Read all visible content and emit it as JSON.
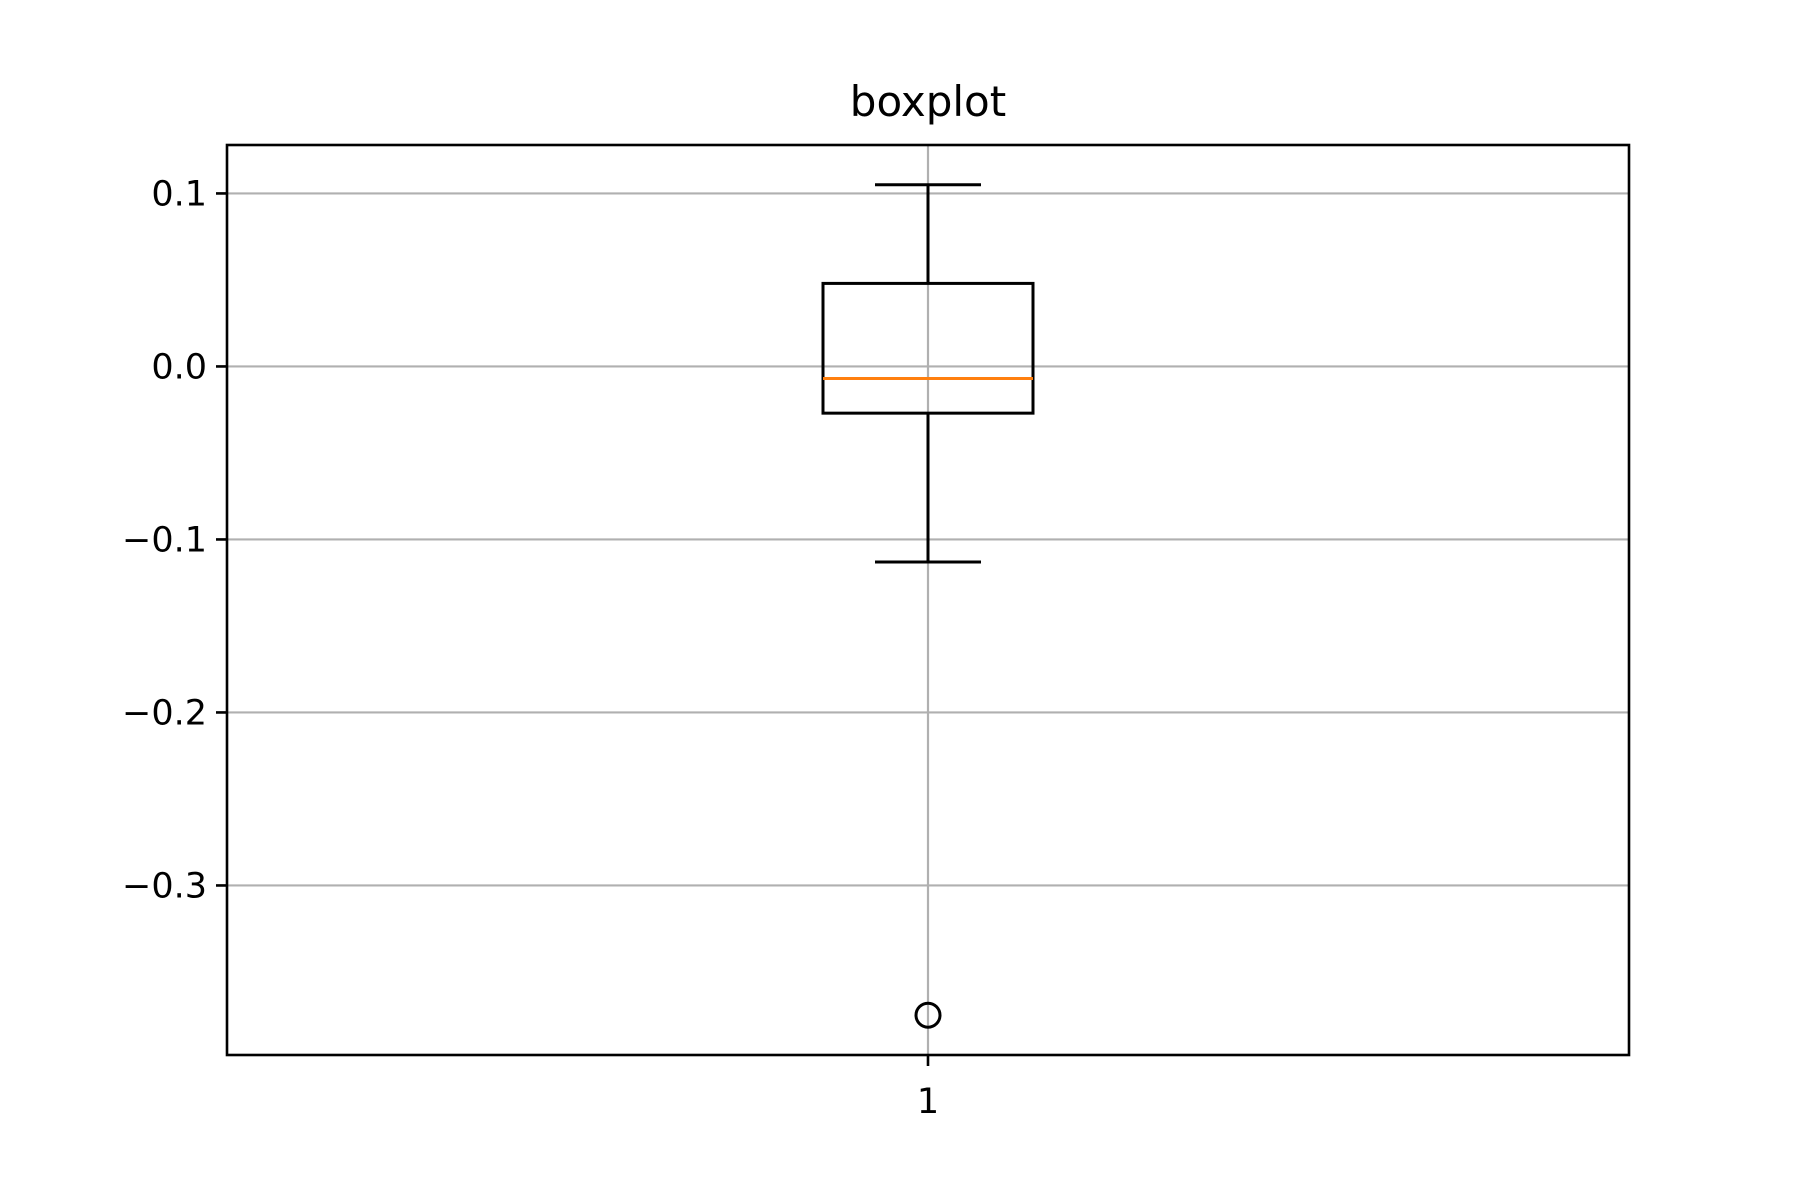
{
  "chart_data": {
    "type": "boxplot",
    "title": "boxplot",
    "xlabel": "",
    "ylabel": "",
    "categories": [
      "1"
    ],
    "boxes": [
      {
        "category": "1",
        "q1": -0.027,
        "median": -0.007,
        "q3": 0.048,
        "whisker_low": -0.113,
        "whisker_high": 0.105,
        "fliers": [
          -0.375
        ]
      }
    ],
    "ylim": [
      -0.398,
      0.128
    ],
    "y_ticks": [
      {
        "value": 0.1,
        "label": "0.1"
      },
      {
        "value": 0.0,
        "label": "0.0"
      },
      {
        "value": -0.1,
        "label": "−0.1"
      },
      {
        "value": -0.2,
        "label": "−0.2"
      },
      {
        "value": -0.3,
        "label": "−0.3"
      }
    ],
    "grid": true,
    "colors": {
      "box": "#000000",
      "median": "#ff7f0e",
      "grid": "#b0b0b0"
    }
  }
}
